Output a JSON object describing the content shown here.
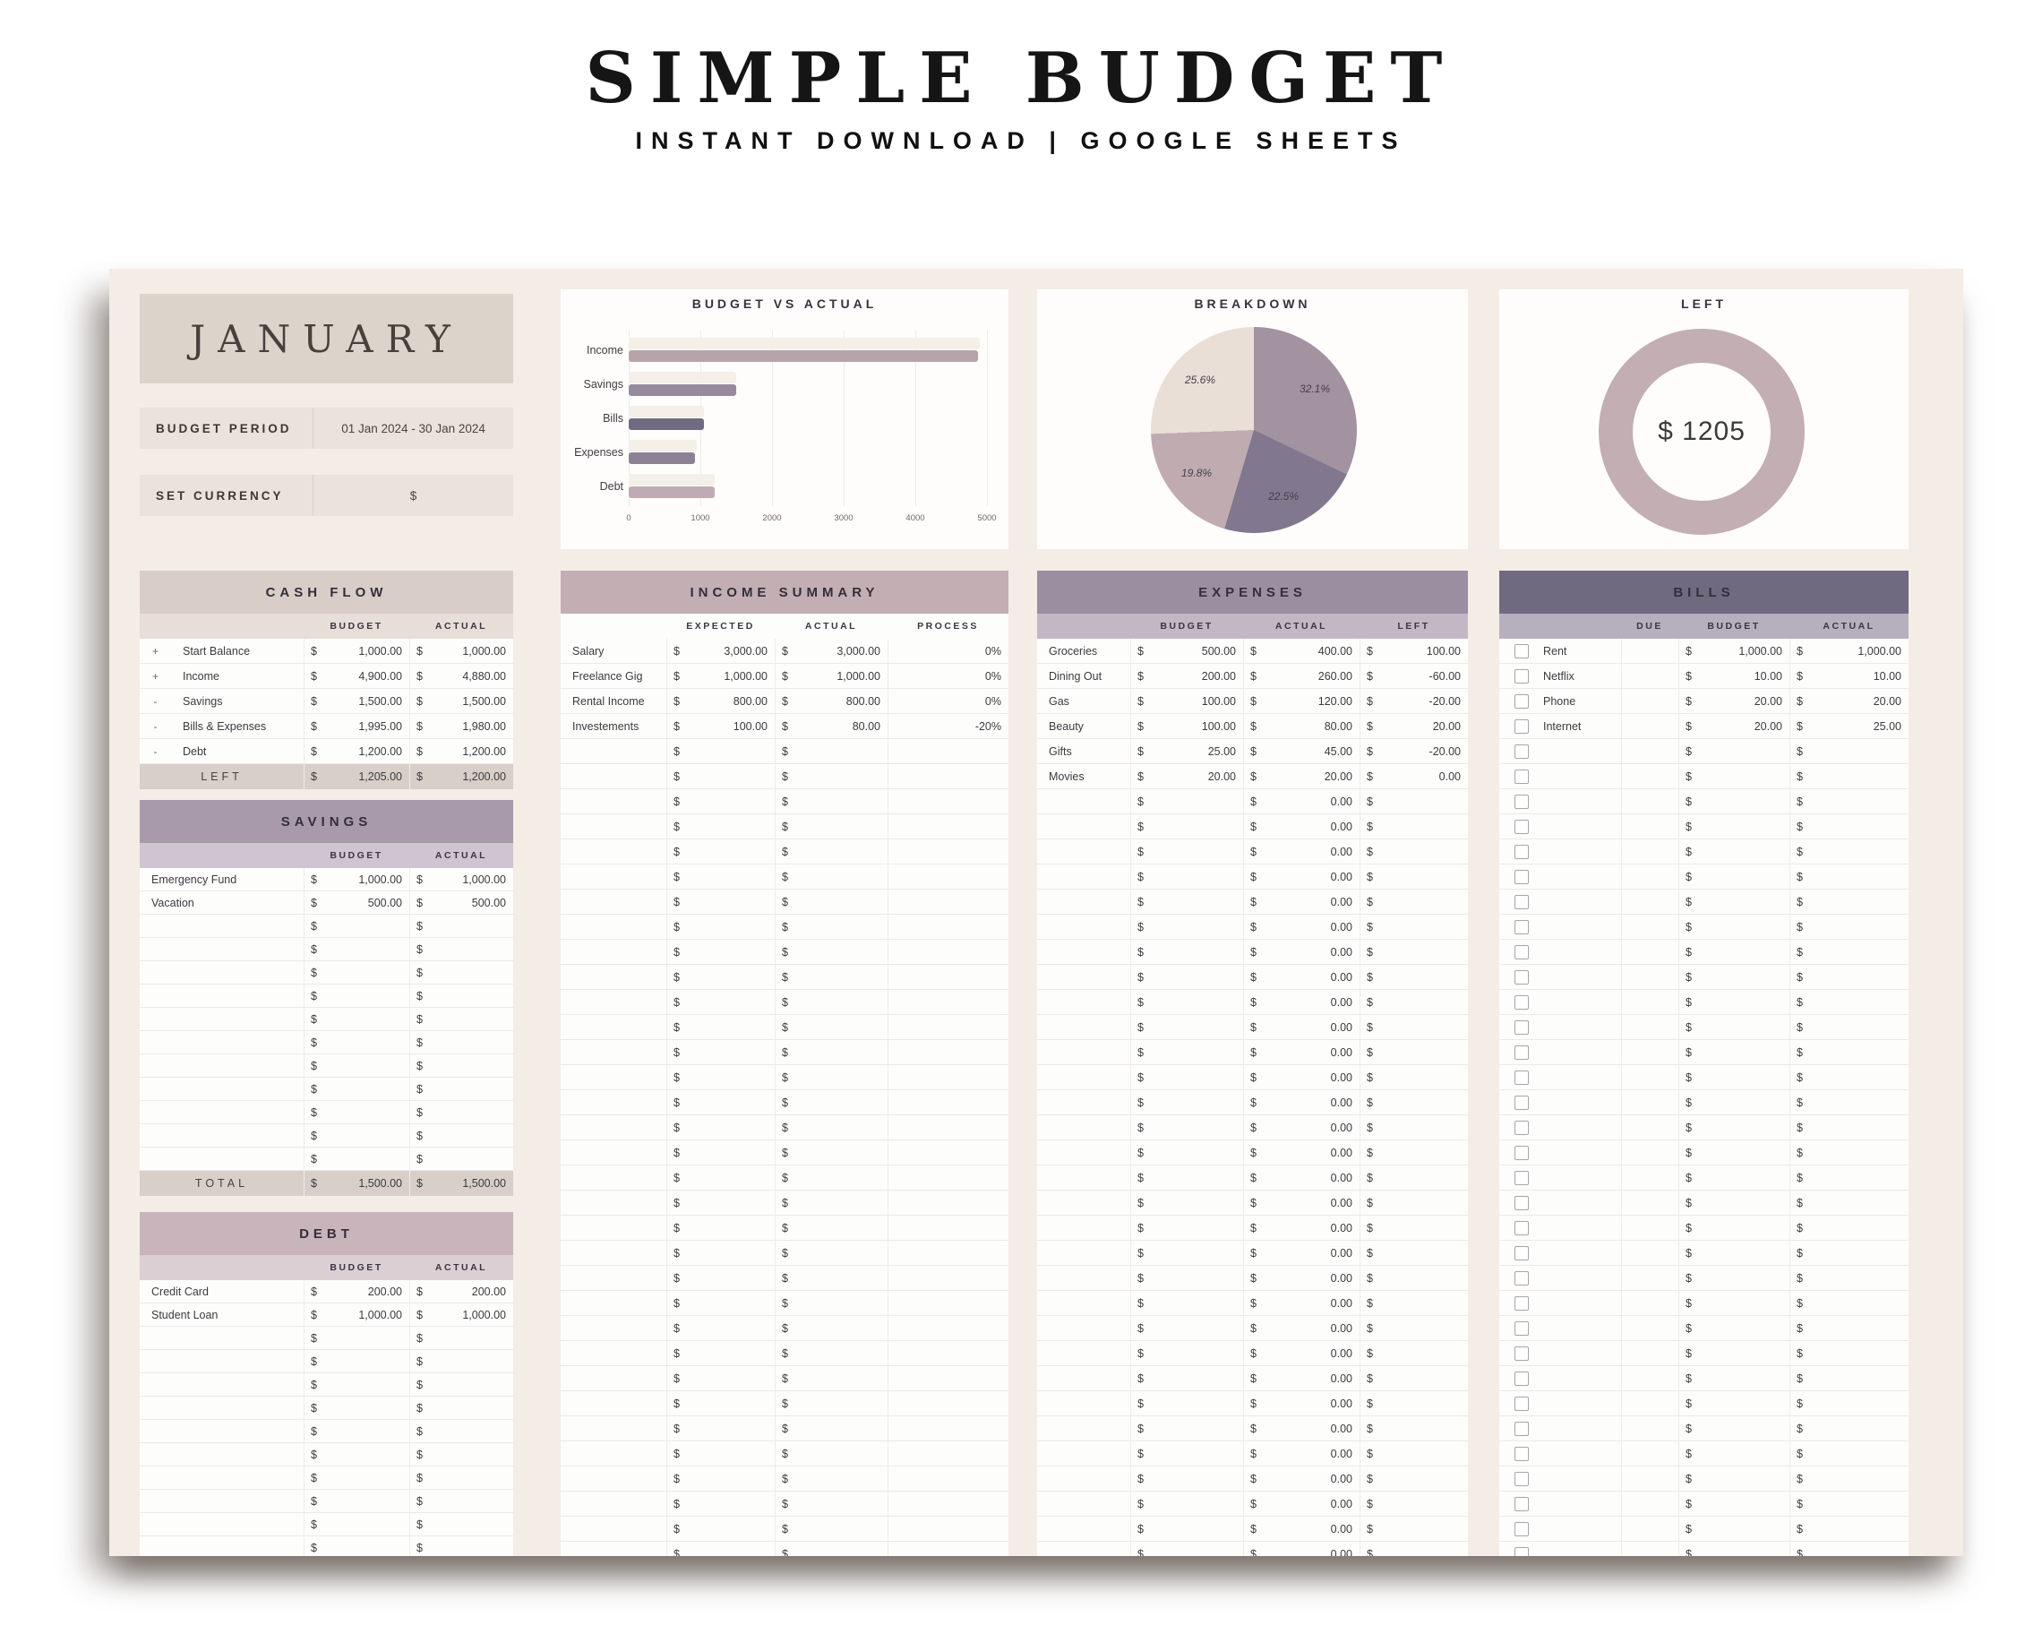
{
  "page": {
    "title": "SIMPLE BUDGET",
    "subtitle": "INSTANT DOWNLOAD | GOOGLE SHEETS"
  },
  "palette": {
    "sheet": "#f3ede6",
    "january_bg": "#dcd3cb",
    "info_bg": "#eae2db",
    "footer_bg": "#d8cfc8",
    "cash_flow_hdr": "#d8cec7",
    "cash_flow_sub": "#e6ded7",
    "savings_hdr": "#a89aab",
    "savings_sub": "#cfc5d1",
    "debt_hdr": "#c9b4bb",
    "debt_sub": "#dccfd4",
    "income_hdr": "#c3aeb4",
    "income_sub": "#ddcfd4",
    "expenses_hdr": "#9c8ea1",
    "expenses_sub": "#c2b7c5",
    "bills_hdr": "#6f6a80",
    "bills_sub": "#b6afbd",
    "donut": "#c2aeb3"
  },
  "month_panel": {
    "month": "JANUARY",
    "budget_period_label": "BUDGET PERIOD",
    "budget_period_value": "01 Jan 2024 - 30 Jan 2024",
    "set_currency_label": "SET CURRENCY",
    "set_currency_value": "$"
  },
  "cash_flow": {
    "title": "CASH FLOW",
    "columns": [
      "BUDGET",
      "ACTUAL"
    ],
    "rows": [
      {
        "sign": "+",
        "name": "Start Balance",
        "budget": "1,000.00",
        "actual": "1,000.00"
      },
      {
        "sign": "+",
        "name": "Income",
        "budget": "4,900.00",
        "actual": "4,880.00"
      },
      {
        "sign": "-",
        "name": "Savings",
        "budget": "1,500.00",
        "actual": "1,500.00"
      },
      {
        "sign": "-",
        "name": "Bills & Expenses",
        "budget": "1,995.00",
        "actual": "1,980.00"
      },
      {
        "sign": "-",
        "name": "Debt",
        "budget": "1,200.00",
        "actual": "1,200.00"
      }
    ],
    "footer": {
      "label": "LEFT",
      "budget": "1,205.00",
      "actual": "1,200.00"
    }
  },
  "savings": {
    "title": "SAVINGS",
    "columns": [
      "BUDGET",
      "ACTUAL"
    ],
    "rows": [
      {
        "name": "Emergency Fund",
        "budget": "1,000.00",
        "actual": "1,000.00"
      },
      {
        "name": "Vacation",
        "budget": "500.00",
        "actual": "500.00"
      }
    ],
    "empty_rows": 11,
    "footer": {
      "label": "TOTAL",
      "budget": "1,500.00",
      "actual": "1,500.00"
    }
  },
  "debt": {
    "title": "DEBT",
    "columns": [
      "BUDGET",
      "ACTUAL"
    ],
    "rows": [
      {
        "name": "Credit Card",
        "budget": "200.00",
        "actual": "200.00"
      },
      {
        "name": "Student Loan",
        "budget": "1,000.00",
        "actual": "1,000.00"
      }
    ],
    "empty_rows": 10
  },
  "income_summary": {
    "title": "INCOME SUMMARY",
    "columns": [
      "EXPECTED",
      "ACTUAL",
      "PROCESS"
    ],
    "rows": [
      {
        "name": "Salary",
        "expected": "3,000.00",
        "actual": "3,000.00",
        "process": "0%"
      },
      {
        "name": "Freelance Gig",
        "expected": "1,000.00",
        "actual": "1,000.00",
        "process": "0%"
      },
      {
        "name": "Rental Income",
        "expected": "800.00",
        "actual": "800.00",
        "process": "0%"
      },
      {
        "name": "Investements",
        "expected": "100.00",
        "actual": "80.00",
        "process": "-20%"
      }
    ],
    "empty_rows": 33
  },
  "expenses": {
    "title": "EXPENSES",
    "columns": [
      "BUDGET",
      "ACTUAL",
      "LEFT"
    ],
    "rows": [
      {
        "name": "Groceries",
        "budget": "500.00",
        "actual": "400.00",
        "left": "100.00"
      },
      {
        "name": "Dining Out",
        "budget": "200.00",
        "actual": "260.00",
        "left": "-60.00"
      },
      {
        "name": "Gas",
        "budget": "100.00",
        "actual": "120.00",
        "left": "-20.00"
      },
      {
        "name": "Beauty",
        "budget": "100.00",
        "actual": "80.00",
        "left": "20.00"
      },
      {
        "name": "Gifts",
        "budget": "25.00",
        "actual": "45.00",
        "left": "-20.00"
      },
      {
        "name": "Movies",
        "budget": "20.00",
        "actual": "20.00",
        "left": "0.00"
      }
    ],
    "empty_rows": 31,
    "empty_actual": "0.00"
  },
  "bills": {
    "title": "BILLS",
    "columns": [
      "DUE",
      "BUDGET",
      "ACTUAL"
    ],
    "rows": [
      {
        "name": "Rent",
        "due": "",
        "budget": "1,000.00",
        "actual": "1,000.00"
      },
      {
        "name": "Netflix",
        "due": "",
        "budget": "10.00",
        "actual": "10.00"
      },
      {
        "name": "Phone",
        "due": "",
        "budget": "20.00",
        "actual": "20.00"
      },
      {
        "name": "Internet",
        "due": "",
        "budget": "20.00",
        "actual": "25.00"
      }
    ],
    "empty_rows": 33
  },
  "chart_data": [
    {
      "type": "bar",
      "title": "BUDGET VS ACTUAL",
      "orientation": "horizontal",
      "categories": [
        "Income",
        "Savings",
        "Bills",
        "Expenses",
        "Debt"
      ],
      "series": [
        {
          "name": "Budget",
          "values": [
            4900,
            1500,
            1050,
            945,
            1200
          ]
        },
        {
          "name": "Actual",
          "values": [
            4880,
            1500,
            1055,
            925,
            1200
          ]
        }
      ],
      "xlim": [
        0,
        5000
      ],
      "xticks": [
        0,
        1000,
        2000,
        3000,
        4000,
        5000
      ],
      "budget_color": "#f4efe7",
      "actual_colors": [
        "#b7a4ab",
        "#978a9c",
        "#716b82",
        "#8d8294",
        "#bfabb3"
      ]
    },
    {
      "type": "pie",
      "title": "BREAKDOWN",
      "labels": [
        "32.1%",
        "22.5%",
        "19.8%",
        "25.6%"
      ],
      "values": [
        32.1,
        22.5,
        19.8,
        25.6
      ],
      "colors": [
        "#a392a0",
        "#81788f",
        "#c0abb1",
        "#e9dfd7"
      ]
    },
    {
      "type": "donut",
      "title": "LEFT",
      "center_label": "$ 1205",
      "value": 1205,
      "color": "#c2aeb3"
    }
  ]
}
